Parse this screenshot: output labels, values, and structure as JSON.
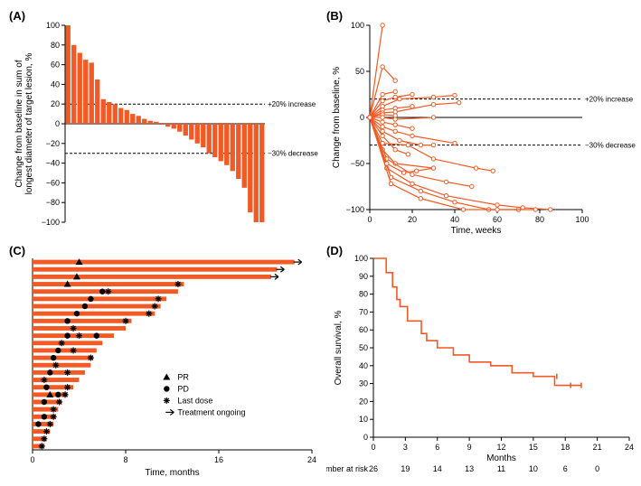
{
  "colors": {
    "accent": "#f15a24",
    "axis": "#000000",
    "bg": "#ffffff"
  },
  "A": {
    "label": "(A)",
    "type": "bar",
    "ylabel": "Change from baseline in sum of\nlongest diameter of target lesion, %",
    "ylim": [
      -100,
      100
    ],
    "yticks": [
      -100,
      -80,
      -60,
      -40,
      -20,
      0,
      20,
      40,
      60,
      80,
      100
    ],
    "reflines": [
      {
        "y": 20,
        "label": "+20% increase"
      },
      {
        "y": -30,
        "label": "−30% decrease"
      }
    ],
    "values": [
      100,
      80,
      72,
      65,
      62,
      45,
      25,
      22,
      20,
      16,
      14,
      10,
      8,
      5,
      3,
      2,
      0,
      -3,
      -5,
      -8,
      -12,
      -16,
      -20,
      -24,
      -30,
      -34,
      -38,
      -42,
      -48,
      -56,
      -65,
      -90,
      -100,
      -100
    ]
  },
  "B": {
    "label": "(B)",
    "type": "line",
    "xlabel": "Time, weeks",
    "ylabel": "Change from baseline, %",
    "xlim": [
      0,
      100
    ],
    "ylim": [
      -100,
      100
    ],
    "xticks": [
      0,
      20,
      40,
      60,
      80,
      100
    ],
    "yticks": [
      -100,
      -50,
      0,
      50,
      100
    ],
    "reflines": [
      {
        "y": 20,
        "label": "+20% increase"
      },
      {
        "y": -30,
        "label": "−30% decrease"
      }
    ],
    "series": [
      [
        [
          0,
          0
        ],
        [
          6,
          100
        ]
      ],
      [
        [
          0,
          0
        ],
        [
          6,
          55
        ],
        [
          12,
          40
        ]
      ],
      [
        [
          0,
          0
        ],
        [
          6,
          25
        ],
        [
          12,
          28
        ]
      ],
      [
        [
          0,
          0
        ],
        [
          6,
          18
        ],
        [
          12,
          22
        ],
        [
          20,
          25
        ]
      ],
      [
        [
          0,
          0
        ],
        [
          6,
          12
        ],
        [
          14,
          20
        ],
        [
          30,
          22
        ],
        [
          40,
          24
        ]
      ],
      [
        [
          0,
          0
        ],
        [
          6,
          8
        ],
        [
          12,
          10
        ],
        [
          20,
          12
        ]
      ],
      [
        [
          0,
          0
        ],
        [
          6,
          5
        ],
        [
          12,
          6
        ],
        [
          30,
          14
        ],
        [
          42,
          16
        ]
      ],
      [
        [
          0,
          0
        ],
        [
          6,
          3
        ],
        [
          12,
          2
        ]
      ],
      [
        [
          0,
          0
        ],
        [
          6,
          0
        ],
        [
          12,
          -2
        ],
        [
          30,
          0
        ]
      ],
      [
        [
          0,
          0
        ],
        [
          6,
          -5
        ],
        [
          12,
          -8
        ],
        [
          20,
          -12
        ]
      ],
      [
        [
          0,
          0
        ],
        [
          6,
          -10
        ],
        [
          12,
          -15
        ],
        [
          20,
          -20
        ],
        [
          40,
          -28
        ]
      ],
      [
        [
          0,
          0
        ],
        [
          6,
          -15
        ],
        [
          14,
          -25
        ],
        [
          24,
          -30
        ],
        [
          30,
          -30
        ]
      ],
      [
        [
          0,
          0
        ],
        [
          6,
          -20
        ],
        [
          12,
          -35
        ],
        [
          18,
          -40
        ]
      ],
      [
        [
          0,
          0
        ],
        [
          6,
          -28
        ],
        [
          18,
          -30
        ],
        [
          30,
          -45
        ],
        [
          50,
          -55
        ],
        [
          58,
          -58
        ]
      ],
      [
        [
          0,
          0
        ],
        [
          6,
          -35
        ],
        [
          12,
          -50
        ],
        [
          30,
          -55
        ]
      ],
      [
        [
          0,
          0
        ],
        [
          8,
          -45
        ],
        [
          20,
          -62
        ],
        [
          36,
          -70
        ],
        [
          48,
          -75
        ]
      ],
      [
        [
          0,
          0
        ],
        [
          8,
          -55
        ],
        [
          20,
          -72
        ],
        [
          36,
          -85
        ],
        [
          60,
          -95
        ],
        [
          72,
          -98
        ],
        [
          85,
          -100
        ]
      ],
      [
        [
          0,
          0
        ],
        [
          10,
          -65
        ],
        [
          24,
          -80
        ],
        [
          40,
          -92
        ],
        [
          56,
          -100
        ],
        [
          70,
          -100
        ]
      ],
      [
        [
          0,
          0
        ],
        [
          10,
          -72
        ],
        [
          24,
          -88
        ],
        [
          44,
          -100
        ],
        [
          60,
          -100
        ],
        [
          78,
          -100
        ]
      ],
      [
        [
          0,
          0
        ],
        [
          8,
          -50
        ],
        [
          16,
          -60
        ],
        [
          22,
          -58
        ],
        [
          30,
          -55
        ]
      ]
    ]
  },
  "C": {
    "label": "(C)",
    "type": "swimmer",
    "xlabel": "Time, months",
    "xlim": [
      0,
      24
    ],
    "xticks": [
      0,
      8,
      16,
      24
    ],
    "legend": [
      {
        "marker": "tri",
        "label": "PR"
      },
      {
        "marker": "circle",
        "label": "PD"
      },
      {
        "marker": "star",
        "label": "Last dose"
      },
      {
        "marker": "arrow",
        "label": "Treatment ongoing"
      }
    ],
    "rows": [
      {
        "len": 22.5,
        "events": [
          {
            "t": 4,
            "m": "tri"
          },
          {
            "t": 22.5,
            "m": "arrow"
          }
        ]
      },
      {
        "len": 21,
        "events": [
          {
            "t": 21,
            "m": "arrow"
          }
        ]
      },
      {
        "len": 20.5,
        "events": [
          {
            "t": 3.8,
            "m": "tri"
          },
          {
            "t": 20.5,
            "m": "arrow"
          }
        ]
      },
      {
        "len": 13,
        "events": [
          {
            "t": 3,
            "m": "tri"
          },
          {
            "t": 12.5,
            "m": "star"
          }
        ]
      },
      {
        "len": 12.5,
        "events": [
          {
            "t": 6,
            "m": "circle"
          },
          {
            "t": 6.5,
            "m": "star"
          }
        ]
      },
      {
        "len": 11.5,
        "events": [
          {
            "t": 5,
            "m": "circle"
          },
          {
            "t": 10.8,
            "m": "star"
          }
        ]
      },
      {
        "len": 11,
        "events": [
          {
            "t": 4.5,
            "m": "circle"
          },
          {
            "t": 10.5,
            "m": "star"
          }
        ]
      },
      {
        "len": 10.5,
        "events": [
          {
            "t": 3.8,
            "m": "circle"
          },
          {
            "t": 10,
            "m": "star"
          }
        ]
      },
      {
        "len": 8.5,
        "events": [
          {
            "t": 3,
            "m": "circle"
          },
          {
            "t": 8,
            "m": "star"
          }
        ]
      },
      {
        "len": 8,
        "events": [
          {
            "t": 3.5,
            "m": "star"
          }
        ]
      },
      {
        "len": 7,
        "events": [
          {
            "t": 3,
            "m": "circle"
          },
          {
            "t": 4,
            "m": "star"
          },
          {
            "t": 5.5,
            "m": "circle"
          }
        ]
      },
      {
        "len": 6,
        "events": [
          {
            "t": 2.5,
            "m": "star"
          }
        ]
      },
      {
        "len": 5.5,
        "events": [
          {
            "t": 2.2,
            "m": "circle"
          },
          {
            "t": 3.5,
            "m": "star"
          }
        ]
      },
      {
        "len": 5.2,
        "events": [
          {
            "t": 1.8,
            "m": "circle"
          },
          {
            "t": 5,
            "m": "star"
          }
        ]
      },
      {
        "len": 5,
        "events": [
          {
            "t": 2,
            "m": "star"
          }
        ]
      },
      {
        "len": 4.5,
        "events": [
          {
            "t": 1.5,
            "m": "circle"
          },
          {
            "t": 3,
            "m": "star"
          }
        ]
      },
      {
        "len": 4,
        "events": [
          {
            "t": 1,
            "m": "star"
          }
        ]
      },
      {
        "len": 3.5,
        "events": [
          {
            "t": 1.2,
            "m": "circle"
          },
          {
            "t": 3,
            "m": "star"
          }
        ]
      },
      {
        "len": 3,
        "events": [
          {
            "t": 1.5,
            "m": "tri"
          },
          {
            "t": 2.2,
            "m": "circle"
          },
          {
            "t": 2.8,
            "m": "star"
          }
        ]
      },
      {
        "len": 2.5,
        "events": [
          {
            "t": 1,
            "m": "circle"
          },
          {
            "t": 2.3,
            "m": "star"
          }
        ]
      },
      {
        "len": 2.2,
        "events": [
          {
            "t": 1.8,
            "m": "star"
          }
        ]
      },
      {
        "len": 2,
        "events": [
          {
            "t": 1,
            "m": "circle"
          },
          {
            "t": 1.8,
            "m": "star"
          }
        ]
      },
      {
        "len": 1.8,
        "events": [
          {
            "t": 0.5,
            "m": "circle"
          },
          {
            "t": 1.5,
            "m": "star"
          }
        ]
      },
      {
        "len": 1.5,
        "events": [
          {
            "t": 1.2,
            "m": "star"
          }
        ]
      },
      {
        "len": 1.2,
        "events": [
          {
            "t": 1,
            "m": "star"
          }
        ]
      },
      {
        "len": 1,
        "events": [
          {
            "t": 0.8,
            "m": "star"
          }
        ]
      }
    ]
  },
  "D": {
    "label": "(D)",
    "type": "km",
    "xlabel": "Months",
    "ylabel": "Overall survival, %",
    "xlim": [
      0,
      24
    ],
    "ylim": [
      0,
      100
    ],
    "xticks": [
      0,
      3,
      6,
      9,
      12,
      15,
      18,
      21,
      24
    ],
    "yticks": [
      0,
      10,
      20,
      30,
      40,
      50,
      60,
      70,
      80,
      90,
      100
    ],
    "risk_label": "Number at risk",
    "risk": [
      26,
      19,
      14,
      13,
      11,
      10,
      6,
      0
    ],
    "risk_at": [
      0,
      3,
      6,
      9,
      12,
      15,
      18,
      21
    ],
    "steps": [
      [
        0,
        100
      ],
      [
        1.2,
        100
      ],
      [
        1.2,
        92
      ],
      [
        1.8,
        92
      ],
      [
        1.8,
        84
      ],
      [
        2.2,
        84
      ],
      [
        2.2,
        77
      ],
      [
        2.5,
        77
      ],
      [
        2.5,
        73
      ],
      [
        3.2,
        73
      ],
      [
        3.2,
        65
      ],
      [
        4.5,
        65
      ],
      [
        4.5,
        58
      ],
      [
        5.0,
        58
      ],
      [
        5.0,
        54
      ],
      [
        6.0,
        54
      ],
      [
        6.0,
        50
      ],
      [
        7.5,
        50
      ],
      [
        7.5,
        46
      ],
      [
        9.0,
        46
      ],
      [
        9.0,
        42
      ],
      [
        11,
        42
      ],
      [
        11,
        40
      ],
      [
        13,
        40
      ],
      [
        13,
        36
      ],
      [
        15,
        36
      ],
      [
        15,
        34
      ],
      [
        17,
        34
      ],
      [
        17,
        29
      ],
      [
        19.5,
        29
      ]
    ],
    "censor": [
      [
        17.2,
        34
      ],
      [
        18.5,
        29
      ],
      [
        19.5,
        29
      ]
    ]
  }
}
